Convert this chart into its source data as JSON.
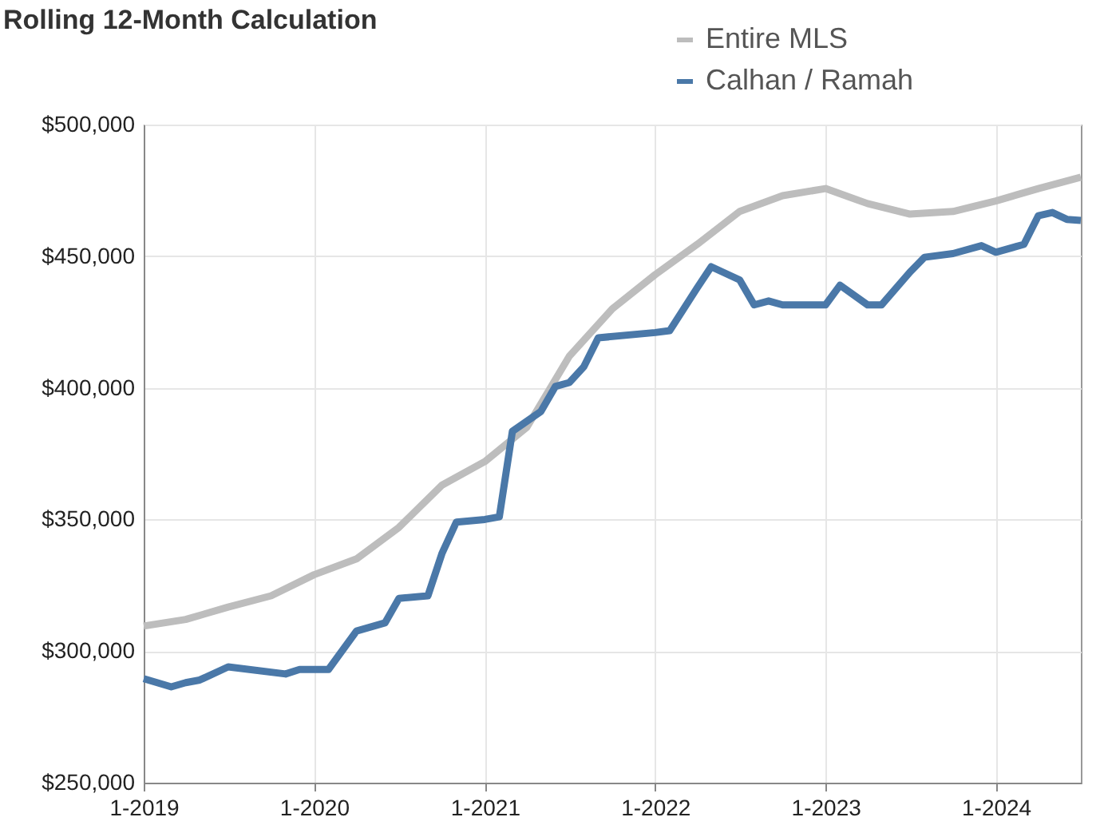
{
  "chart_data": {
    "type": "line",
    "title": "Rolling 12-Month Calculation",
    "xlim": [
      "2019-01",
      "2024-07"
    ],
    "xticks": [
      {
        "value": "2019-01",
        "label": "1-2019"
      },
      {
        "value": "2020-01",
        "label": "1-2020"
      },
      {
        "value": "2021-01",
        "label": "1-2021"
      },
      {
        "value": "2022-01",
        "label": "1-2022"
      },
      {
        "value": "2023-01",
        "label": "1-2023"
      },
      {
        "value": "2024-01",
        "label": "1-2024"
      }
    ],
    "ylim": [
      250000,
      500000
    ],
    "yticks": [
      {
        "value": 250000,
        "label": "$250,000"
      },
      {
        "value": 300000,
        "label": "$300,000"
      },
      {
        "value": 350000,
        "label": "$350,000"
      },
      {
        "value": 400000,
        "label": "$400,000"
      },
      {
        "value": 450000,
        "label": "$450,000"
      },
      {
        "value": 500000,
        "label": "$500,000"
      }
    ],
    "grid": true,
    "legend": "top right",
    "line_style": "solid",
    "marker": "none",
    "series": [
      {
        "name": "Entire MLS",
        "color": "#bdbdbd",
        "x": [
          "2019-01",
          "2019-04",
          "2019-07",
          "2019-10",
          "2020-01",
          "2020-04",
          "2020-07",
          "2020-10",
          "2021-01",
          "2021-04",
          "2021-07",
          "2021-10",
          "2022-01",
          "2022-04",
          "2022-07",
          "2022-10",
          "2023-01",
          "2023-04",
          "2023-07",
          "2023-10",
          "2024-01",
          "2024-04",
          "2024-07"
        ],
        "values": [
          309500,
          312000,
          316700,
          321000,
          329000,
          335000,
          347000,
          363000,
          372000,
          385000,
          412000,
          430000,
          443000,
          454500,
          467000,
          473000,
          475700,
          470000,
          466000,
          467000,
          471000,
          475700,
          480000
        ]
      },
      {
        "name": "Calhan / Ramah",
        "color": "#4a78a8",
        "x": [
          "2019-01",
          "2019-03",
          "2019-04",
          "2019-05",
          "2019-07",
          "2019-11",
          "2019-12",
          "2020-02",
          "2020-04",
          "2020-06",
          "2020-07",
          "2020-09",
          "2020-10",
          "2020-11",
          "2021-01",
          "2021-02",
          "2021-03",
          "2021-05",
          "2021-06",
          "2021-07",
          "2021-08",
          "2021-09",
          "2022-01",
          "2022-02",
          "2022-04",
          "2022-05",
          "2022-07",
          "2022-08",
          "2022-09",
          "2022-10",
          "2023-01",
          "2023-02",
          "2023-04",
          "2023-05",
          "2023-07",
          "2023-08",
          "2023-10",
          "2023-12",
          "2024-01",
          "2024-03",
          "2024-04",
          "2024-05",
          "2024-06",
          "2024-07"
        ],
        "values": [
          289500,
          286400,
          288000,
          289000,
          294000,
          291300,
          293000,
          293000,
          307600,
          310700,
          320000,
          321000,
          337000,
          349000,
          350000,
          351000,
          383500,
          391000,
          400500,
          402000,
          408000,
          419000,
          421000,
          421700,
          438000,
          446000,
          441000,
          431500,
          433000,
          431500,
          431500,
          439000,
          431500,
          431500,
          444000,
          449600,
          451000,
          454000,
          451500,
          454500,
          465400,
          466600,
          464000,
          463600
        ]
      }
    ]
  }
}
